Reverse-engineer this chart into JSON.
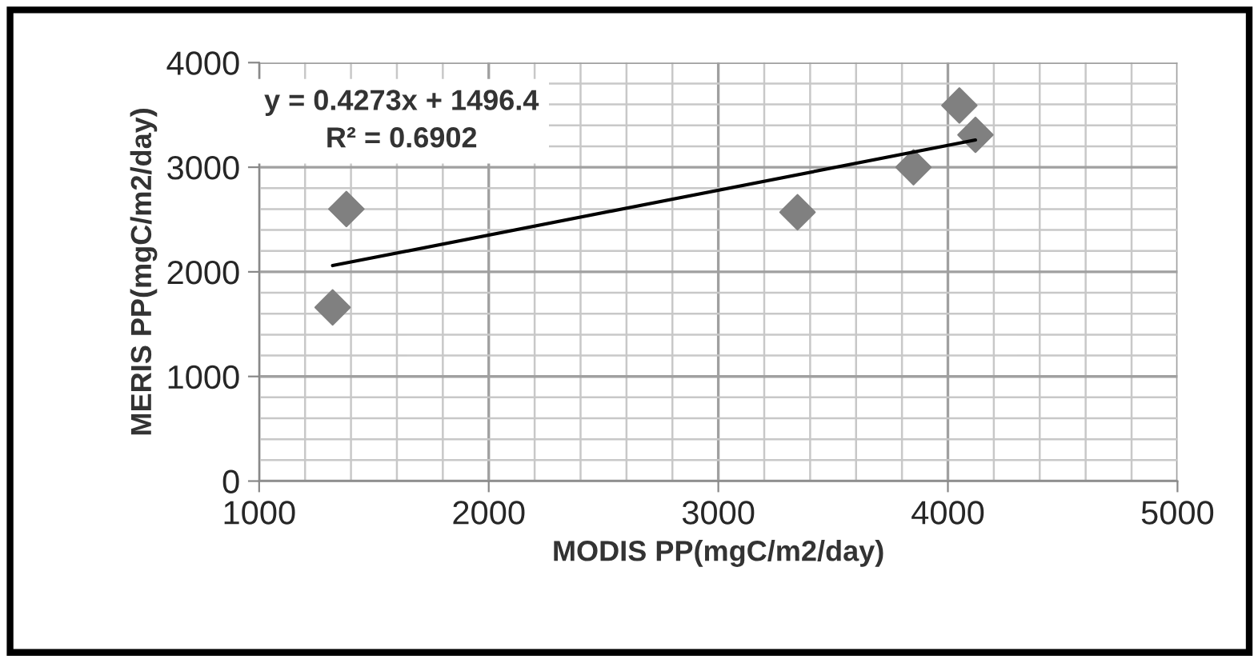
{
  "chart_data": {
    "type": "scatter",
    "xlabel": "MODIS PP(mgC/m2/day)",
    "ylabel": "MERIS PP(mgC/m2/day)",
    "series": [
      {
        "color": "#808080",
        "marker": "diamond",
        "x": [
          1320,
          1380,
          3345,
          3850,
          4050,
          4120
        ],
        "values": [
          1660,
          2600,
          2570,
          3000,
          3590,
          3310
        ]
      },
      {
        "type": "line",
        "color": "#000000",
        "marker": "none",
        "line_style": "solid",
        "x": [
          1320,
          4120
        ],
        "values": [
          2060,
          3260
        ]
      }
    ],
    "annotations": [
      "y = 0.4273x + 1496.4",
      "R² = 0.6902"
    ],
    "xlim": [
      1000,
      5000
    ],
    "xticks": [
      1000,
      2000,
      3000,
      4000,
      5000
    ],
    "ylim": [
      0,
      4000
    ],
    "yticks": [
      0,
      1000,
      2000,
      3000,
      4000
    ],
    "grid": true,
    "legend": false
  }
}
